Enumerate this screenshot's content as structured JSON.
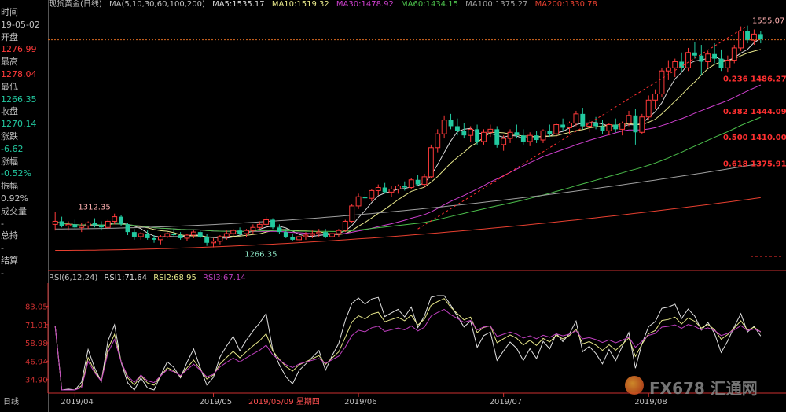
{
  "header": {
    "symbol": "现货黄金(日线)",
    "ma_title": "MA(5,10,30,60,100,200)",
    "ma": [
      {
        "label": "MA5:1535.17",
        "color": "#d8d8d8"
      },
      {
        "label": "MA10:1519.32",
        "color": "#e6e68a"
      },
      {
        "label": "MA30:1478.92",
        "color": "#d040d0"
      },
      {
        "label": "MA60:1434.15",
        "color": "#4cc04c"
      },
      {
        "label": "MA100:1375.27",
        "color": "#a0a0a0"
      },
      {
        "label": "MA200:1330.78",
        "color": "#e84030"
      }
    ]
  },
  "info": {
    "time_label": "时间",
    "time_value": "19-05-02",
    "open_label": "开盘",
    "open_value": "1276.99",
    "high_label": "最高",
    "high_value": "1278.04",
    "low_label": "最低",
    "low_value": "1266.35",
    "close_label": "收盘",
    "close_value": "1270.14",
    "change_label": "涨跌",
    "change_value": "-6.62",
    "pct_label": "涨幅",
    "pct_value": "-0.52%",
    "amp_label": "振幅",
    "amp_value": "0.92%",
    "vol_label": "成交量",
    "vol_value": "-",
    "oi_label": "总持",
    "oi_value": "-",
    "settle_label": "结算",
    "settle_value": "-"
  },
  "rsi_header": {
    "title": "RSI(6,12,24)",
    "rsi1": "RSI1:71.64",
    "rsi2": "RSI2:68.95",
    "rsi3": "RSI3:67.14"
  },
  "footer": {
    "period": "日线",
    "highlight_date": "2019/05/09 星期四"
  },
  "watermark": "FX678",
  "watermark_cn": "汇通网",
  "colors": {
    "up": "#ff3a3a",
    "down": "#22c9a0",
    "fib": "#ff3030",
    "rsi1": "#e0e0e0",
    "rsi2": "#e6e68a",
    "rsi3": "#c040c0",
    "axis": "#cc3030"
  },
  "chart_data": [
    {
      "type": "candlestick",
      "title": "现货黄金(日线)",
      "x_ticks": [
        "2019/04",
        "2019/05",
        "2019/06",
        "2019/07",
        "2019/08"
      ],
      "y_range": [
        1240,
        1570
      ],
      "annotations": [
        {
          "text": "1312.35",
          "value": 1312.35,
          "kind": "high"
        },
        {
          "text": "1266.35",
          "value": 1266.35,
          "kind": "low"
        },
        {
          "text": "1555.07",
          "value": 1555.07,
          "kind": "high"
        }
      ],
      "fibonacci": [
        {
          "ratio": "0.236",
          "price": "1486.27"
        },
        {
          "ratio": "0.382",
          "price": "1444.09"
        },
        {
          "ratio": "0.500",
          "price": "1410.00"
        },
        {
          "ratio": "0.618",
          "price": "1375.91"
        }
      ],
      "series": [
        {
          "name": "MA5",
          "value": 1535.17
        },
        {
          "name": "MA10",
          "value": 1519.32
        },
        {
          "name": "MA30",
          "value": 1478.92
        },
        {
          "name": "MA60",
          "value": 1434.15
        },
        {
          "name": "MA100",
          "value": 1375.27
        },
        {
          "name": "MA200",
          "value": 1330.78
        }
      ],
      "candles": [
        [
          1296,
          1312,
          1288,
          1300
        ],
        [
          1300,
          1306,
          1292,
          1294
        ],
        [
          1294,
          1300,
          1288,
          1296
        ],
        [
          1296,
          1302,
          1290,
          1292
        ],
        [
          1292,
          1298,
          1286,
          1294
        ],
        [
          1294,
          1300,
          1290,
          1298
        ],
        [
          1298,
          1304,
          1292,
          1295
        ],
        [
          1295,
          1300,
          1288,
          1292
        ],
        [
          1292,
          1302,
          1290,
          1300
        ],
        [
          1300,
          1310,
          1296,
          1306
        ],
        [
          1306,
          1308,
          1294,
          1296
        ],
        [
          1296,
          1298,
          1282,
          1286
        ],
        [
          1286,
          1290,
          1276,
          1280
        ],
        [
          1280,
          1286,
          1276,
          1284
        ],
        [
          1284,
          1288,
          1276,
          1278
        ],
        [
          1278,
          1282,
          1272,
          1276
        ],
        [
          1276,
          1282,
          1270,
          1280
        ],
        [
          1280,
          1286,
          1278,
          1284
        ],
        [
          1284,
          1290,
          1280,
          1282
        ],
        [
          1282,
          1286,
          1276,
          1278
        ],
        [
          1278,
          1284,
          1274,
          1282
        ],
        [
          1282,
          1288,
          1278,
          1286
        ],
        [
          1286,
          1288,
          1278,
          1280
        ],
        [
          1280,
          1284,
          1268,
          1272
        ],
        [
          1272,
          1278,
          1266,
          1274
        ],
        [
          1274,
          1282,
          1270,
          1280
        ],
        [
          1280,
          1288,
          1276,
          1284
        ],
        [
          1284,
          1290,
          1280,
          1288
        ],
        [
          1288,
          1292,
          1282,
          1284
        ],
        [
          1284,
          1290,
          1280,
          1288
        ],
        [
          1288,
          1296,
          1284,
          1292
        ],
        [
          1292,
          1300,
          1288,
          1296
        ],
        [
          1296,
          1306,
          1292,
          1302
        ],
        [
          1302,
          1304,
          1290,
          1292
        ],
        [
          1292,
          1296,
          1284,
          1286
        ],
        [
          1286,
          1290,
          1278,
          1280
        ],
        [
          1280,
          1284,
          1274,
          1276
        ],
        [
          1276,
          1282,
          1272,
          1280
        ],
        [
          1280,
          1286,
          1276,
          1282
        ],
        [
          1282,
          1288,
          1278,
          1284
        ],
        [
          1284,
          1290,
          1280,
          1286
        ],
        [
          1286,
          1290,
          1278,
          1280
        ],
        [
          1280,
          1286,
          1276,
          1284
        ],
        [
          1284,
          1290,
          1280,
          1288
        ],
        [
          1288,
          1302,
          1286,
          1300
        ],
        [
          1300,
          1322,
          1298,
          1320
        ],
        [
          1320,
          1336,
          1316,
          1332
        ],
        [
          1332,
          1340,
          1326,
          1330
        ],
        [
          1330,
          1342,
          1326,
          1340
        ],
        [
          1340,
          1348,
          1334,
          1344
        ],
        [
          1344,
          1350,
          1336,
          1338
        ],
        [
          1338,
          1346,
          1332,
          1342
        ],
        [
          1342,
          1348,
          1336,
          1346
        ],
        [
          1346,
          1352,
          1340,
          1344
        ],
        [
          1344,
          1356,
          1342,
          1354
        ],
        [
          1354,
          1360,
          1346,
          1348
        ],
        [
          1348,
          1362,
          1344,
          1358
        ],
        [
          1358,
          1400,
          1356,
          1396
        ],
        [
          1396,
          1420,
          1390,
          1414
        ],
        [
          1414,
          1438,
          1408,
          1432
        ],
        [
          1432,
          1440,
          1420,
          1424
        ],
        [
          1424,
          1434,
          1412,
          1418
        ],
        [
          1418,
          1428,
          1408,
          1412
        ],
        [
          1412,
          1424,
          1404,
          1420
        ],
        [
          1420,
          1426,
          1400,
          1404
        ],
        [
          1404,
          1420,
          1400,
          1416
        ],
        [
          1416,
          1426,
          1410,
          1420
        ],
        [
          1420,
          1424,
          1396,
          1400
        ],
        [
          1400,
          1412,
          1392,
          1408
        ],
        [
          1408,
          1420,
          1402,
          1416
        ],
        [
          1416,
          1426,
          1408,
          1412
        ],
        [
          1412,
          1420,
          1400,
          1404
        ],
        [
          1404,
          1416,
          1398,
          1412
        ],
        [
          1412,
          1418,
          1402,
          1406
        ],
        [
          1406,
          1420,
          1402,
          1418
        ],
        [
          1418,
          1426,
          1410,
          1414
        ],
        [
          1414,
          1428,
          1410,
          1426
        ],
        [
          1426,
          1434,
          1418,
          1422
        ],
        [
          1422,
          1430,
          1414,
          1428
        ],
        [
          1428,
          1444,
          1424,
          1440
        ],
        [
          1440,
          1448,
          1420,
          1424
        ],
        [
          1424,
          1432,
          1416,
          1428
        ],
        [
          1428,
          1436,
          1420,
          1424
        ],
        [
          1424,
          1432,
          1414,
          1418
        ],
        [
          1418,
          1428,
          1412,
          1426
        ],
        [
          1426,
          1434,
          1416,
          1420
        ],
        [
          1420,
          1430,
          1412,
          1428
        ],
        [
          1428,
          1444,
          1424,
          1438
        ],
        [
          1438,
          1446,
          1400,
          1416
        ],
        [
          1416,
          1440,
          1414,
          1436
        ],
        [
          1436,
          1464,
          1432,
          1458
        ],
        [
          1458,
          1472,
          1446,
          1466
        ],
        [
          1466,
          1500,
          1462,
          1496
        ],
        [
          1496,
          1510,
          1484,
          1500
        ],
        [
          1500,
          1512,
          1488,
          1508
        ],
        [
          1508,
          1520,
          1494,
          1500
        ],
        [
          1500,
          1526,
          1496,
          1520
        ],
        [
          1520,
          1534,
          1512,
          1516
        ],
        [
          1516,
          1530,
          1490,
          1508
        ],
        [
          1508,
          1522,
          1500,
          1518
        ],
        [
          1518,
          1532,
          1506,
          1512
        ],
        [
          1512,
          1524,
          1496,
          1500
        ],
        [
          1500,
          1516,
          1494,
          1510
        ],
        [
          1510,
          1530,
          1506,
          1526
        ],
        [
          1526,
          1554,
          1522,
          1548
        ],
        [
          1548,
          1555,
          1532,
          1536
        ],
        [
          1536,
          1550,
          1530,
          1544
        ],
        [
          1544,
          1548,
          1532,
          1538
        ]
      ]
    },
    {
      "type": "line",
      "title": "RSI(6,12,24)",
      "y_ticks": [
        83.05,
        71.01,
        58.98,
        46.94,
        34.9
      ],
      "x_ticks": [
        "2019/04",
        "2019/05",
        "2019/06",
        "2019/07",
        "2019/08"
      ],
      "series": [
        {
          "name": "RSI1",
          "value": 71.64
        },
        {
          "name": "RSI2",
          "value": 68.95
        },
        {
          "name": "RSI3",
          "value": 67.14
        }
      ]
    }
  ]
}
